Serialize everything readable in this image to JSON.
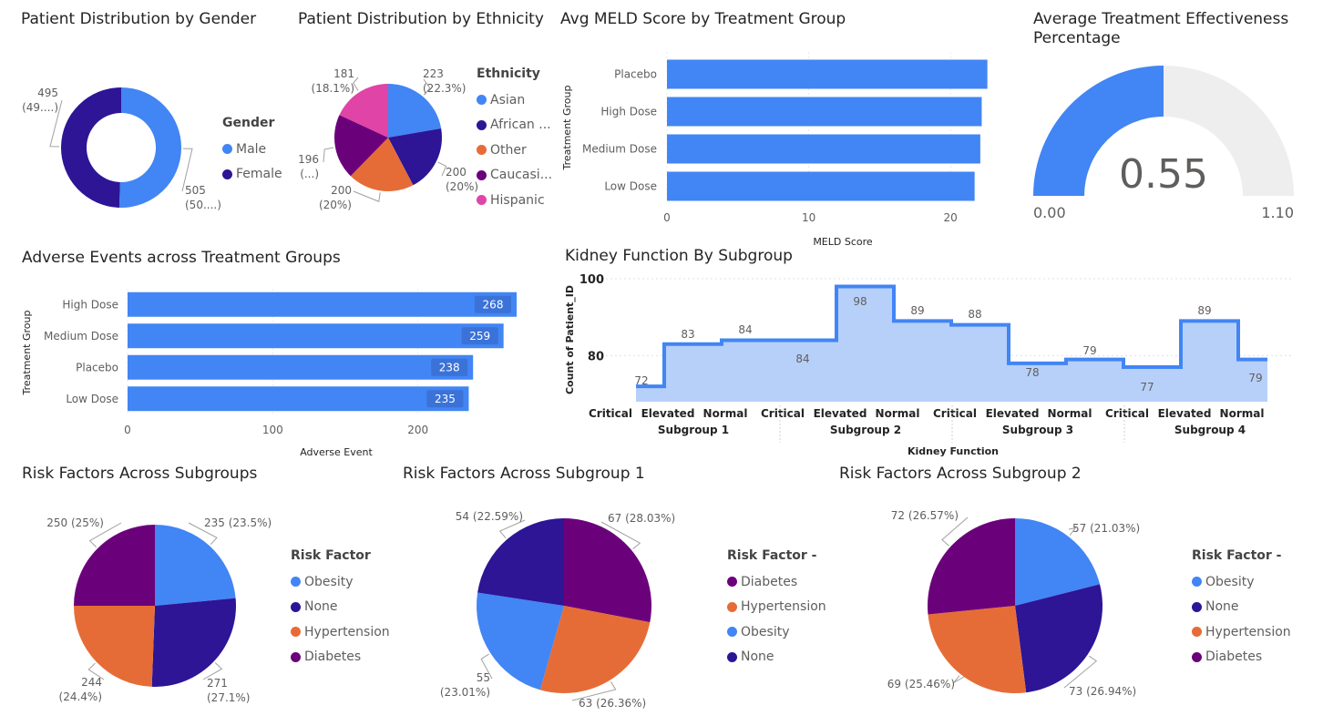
{
  "colors": {
    "blue": "#4285f4",
    "navy": "#2d1596",
    "orange": "#e66c37",
    "purple": "#6b007b",
    "pink": "#e044a7",
    "area": "#b7d0fa",
    "gauge_bg": "#eeeeee"
  },
  "chart_data": [
    {
      "id": "gender",
      "type": "pie",
      "donut": true,
      "title": "Patient Distribution by Gender",
      "legend_title": "Gender",
      "slices": [
        {
          "label": "Male",
          "value": 505,
          "data_label": "505\n(50....)",
          "color": "#4285f4"
        },
        {
          "label": "Female",
          "value": 495,
          "data_label": "495\n(49....)",
          "color": "#2d1596"
        }
      ]
    },
    {
      "id": "ethnicity",
      "type": "pie",
      "title": "Patient Distribution by Ethnicity",
      "legend_title": "Ethnicity",
      "slices": [
        {
          "label": "Asian",
          "value": 223,
          "data_label": "223\n(22.3%)",
          "color": "#4285f4"
        },
        {
          "label": "African ...",
          "value": 200,
          "data_label": "200\n(20%)",
          "color": "#2d1596"
        },
        {
          "label": "Other",
          "value": 200,
          "data_label": "200\n(20%)",
          "color": "#e66c37"
        },
        {
          "label": "Caucasi...",
          "value": 196,
          "data_label": "196\n(...)",
          "color": "#6b007b"
        },
        {
          "label": "Hispanic",
          "value": 181,
          "data_label": "181\n(18.1%)",
          "color": "#e044a7"
        }
      ]
    },
    {
      "id": "meld",
      "type": "bar",
      "orientation": "horizontal",
      "title": "Avg MELD Score by Treatment Group",
      "xlabel": "MELD Score",
      "ylabel": "Treatment Group",
      "categories": [
        "Placebo",
        "High Dose",
        "Medium Dose",
        "Low Dose"
      ],
      "values": [
        22.6,
        22.2,
        22.1,
        21.7
      ],
      "xlim": [
        0,
        25
      ],
      "ticks": [
        0,
        10,
        20
      ],
      "tick_labels": [
        "0",
        "10",
        "20"
      ]
    },
    {
      "id": "gauge",
      "type": "gauge",
      "title": "Average Treatment Effectiveness Percentage",
      "value": 0.55,
      "value_label": "0.55",
      "min": 0,
      "max": 1.1,
      "min_label": "0.00",
      "max_label": "1.10"
    },
    {
      "id": "adverse",
      "type": "bar",
      "orientation": "horizontal",
      "title": "Adverse Events across Treatment Groups",
      "xlabel": "Adverse Event",
      "ylabel": "Treatment Group",
      "categories": [
        "High Dose",
        "Medium Dose",
        "Placebo",
        "Low Dose"
      ],
      "values": [
        268,
        259,
        238,
        235
      ],
      "data_labels": [
        "268",
        "259",
        "238",
        "235"
      ],
      "xlim": [
        0,
        268
      ],
      "ticks": [
        0,
        100,
        200
      ],
      "tick_labels": [
        "0",
        "100",
        "200"
      ]
    },
    {
      "id": "kidney",
      "type": "area",
      "step": true,
      "title": "Kidney Function By Subgroup",
      "xlabel": "Kidney Function",
      "ylabel": "Count of Patient_ID",
      "categories": [
        "Critical",
        "Elevated",
        "Normal",
        "Critical",
        "Elevated",
        "Normal",
        "Critical",
        "Elevated",
        "Normal",
        "Critical",
        "Elevated",
        "Normal"
      ],
      "groups": [
        "Subgroup 1",
        "Subgroup 2",
        "Subgroup 3",
        "Subgroup 4"
      ],
      "values": [
        72,
        83,
        84,
        84,
        98,
        89,
        88,
        78,
        79,
        77,
        89,
        79
      ],
      "data_labels": [
        "72",
        "83",
        "84",
        "84",
        "98",
        "89",
        "88",
        "78",
        "79",
        "77",
        "89",
        "79"
      ],
      "ylim": [
        68,
        100
      ],
      "ticks": [
        80,
        100
      ],
      "tick_labels": [
        "80",
        "100"
      ]
    },
    {
      "id": "risk_all",
      "type": "pie",
      "title": "Risk Factors Across Subgroups",
      "legend_title": "Risk Factor",
      "slices": [
        {
          "label": "Obesity",
          "value": 235,
          "data_label": "235 (23.5%)",
          "color": "#4285f4"
        },
        {
          "label": "None",
          "value": 271,
          "data_label": "271\n(27.1%)",
          "color": "#2d1596"
        },
        {
          "label": "Hypertension",
          "value": 244,
          "data_label": "244\n(24.4%)",
          "color": "#e66c37"
        },
        {
          "label": "Diabetes",
          "value": 250,
          "data_label": "250 (25%)",
          "color": "#6b007b"
        }
      ]
    },
    {
      "id": "risk_sg1",
      "type": "pie",
      "title": "Risk Factors Across Subgroup 1",
      "legend_title": "Risk Factor -",
      "slices": [
        {
          "label": "Diabetes",
          "value": 67,
          "data_label": "67 (28.03%)",
          "color": "#6b007b"
        },
        {
          "label": "Hypertension",
          "value": 63,
          "data_label": "63 (26.36%)",
          "color": "#e66c37"
        },
        {
          "label": "Obesity",
          "value": 55,
          "data_label": "55\n(23.01%)",
          "color": "#4285f4"
        },
        {
          "label": "None",
          "value": 54,
          "data_label": "54 (22.59%)",
          "color": "#2d1596"
        }
      ]
    },
    {
      "id": "risk_sg2",
      "type": "pie",
      "title": "Risk Factors Across Subgroup 2",
      "legend_title": "Risk Factor -",
      "slices": [
        {
          "label": "Obesity",
          "value": 57,
          "data_label": "57 (21.03%)",
          "color": "#4285f4"
        },
        {
          "label": "None",
          "value": 73,
          "data_label": "73 (26.94%)",
          "color": "#2d1596"
        },
        {
          "label": "Hypertension",
          "value": 69,
          "data_label": "69 (25.46%)",
          "color": "#e66c37"
        },
        {
          "label": "Diabetes",
          "value": 72,
          "data_label": "72 (26.57%)",
          "color": "#6b007b"
        }
      ]
    }
  ]
}
